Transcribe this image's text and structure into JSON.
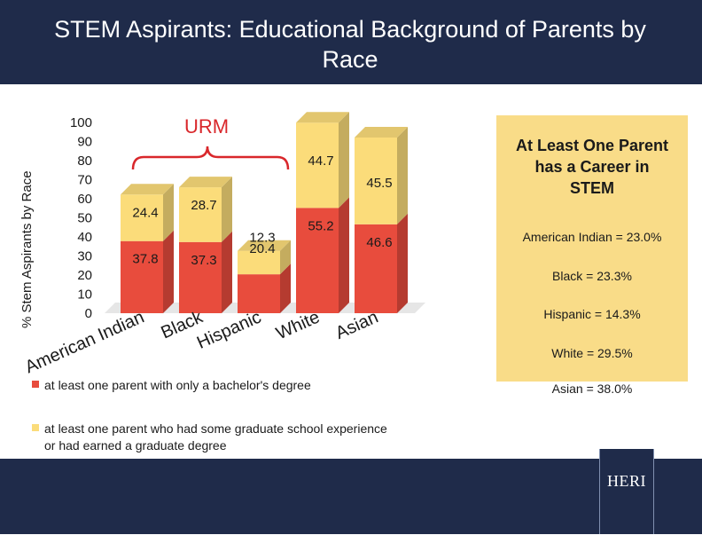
{
  "title": "STEM Aspirants: Educational Background of Parents by Race",
  "colors": {
    "bachelor": "#e84c3d",
    "graduate": "#fbdc7a",
    "side_box": "#f9dc88",
    "bar_band": "#1f2b4a",
    "urm": "#d9272b"
  },
  "chart_data": {
    "type": "bar",
    "stacked": true,
    "categories": [
      "American Indian",
      "Black",
      "Hispanic",
      "White",
      "Asian"
    ],
    "series": [
      {
        "name": "at least one parent with only a bachelor's degree",
        "values": [
          37.8,
          37.3,
          20.4,
          55.2,
          46.6
        ]
      },
      {
        "name": "at least one parent who had some graduate school experience or had earned a graduate degree",
        "values": [
          24.4,
          28.7,
          12.3,
          44.7,
          45.5
        ]
      }
    ],
    "ylabel": "% Stem Aspirants by Race",
    "ylim": [
      0,
      100
    ],
    "yticks": [
      "100",
      "90",
      "80",
      "70",
      "60",
      "50",
      "40",
      "30",
      "20",
      "10",
      "0"
    ],
    "annotation": "URM",
    "legend_position": "bottom"
  },
  "legend": {
    "bachelor_label": "at least one parent with only a bachelor's degree",
    "graduate_line1": "at least one parent who had some graduate school experience",
    "graduate_line2": "or had earned a graduate degree"
  },
  "side_panel": {
    "heading_line1": "At Least One Parent",
    "heading_line2": "has a Career in",
    "heading_line3": "STEM",
    "items": [
      "American Indian = 23.0%",
      "Black = 23.3%",
      "Hispanic = 14.3%",
      "White = 29.5%",
      "Asian = 38.0%"
    ]
  },
  "logo": "HERI"
}
